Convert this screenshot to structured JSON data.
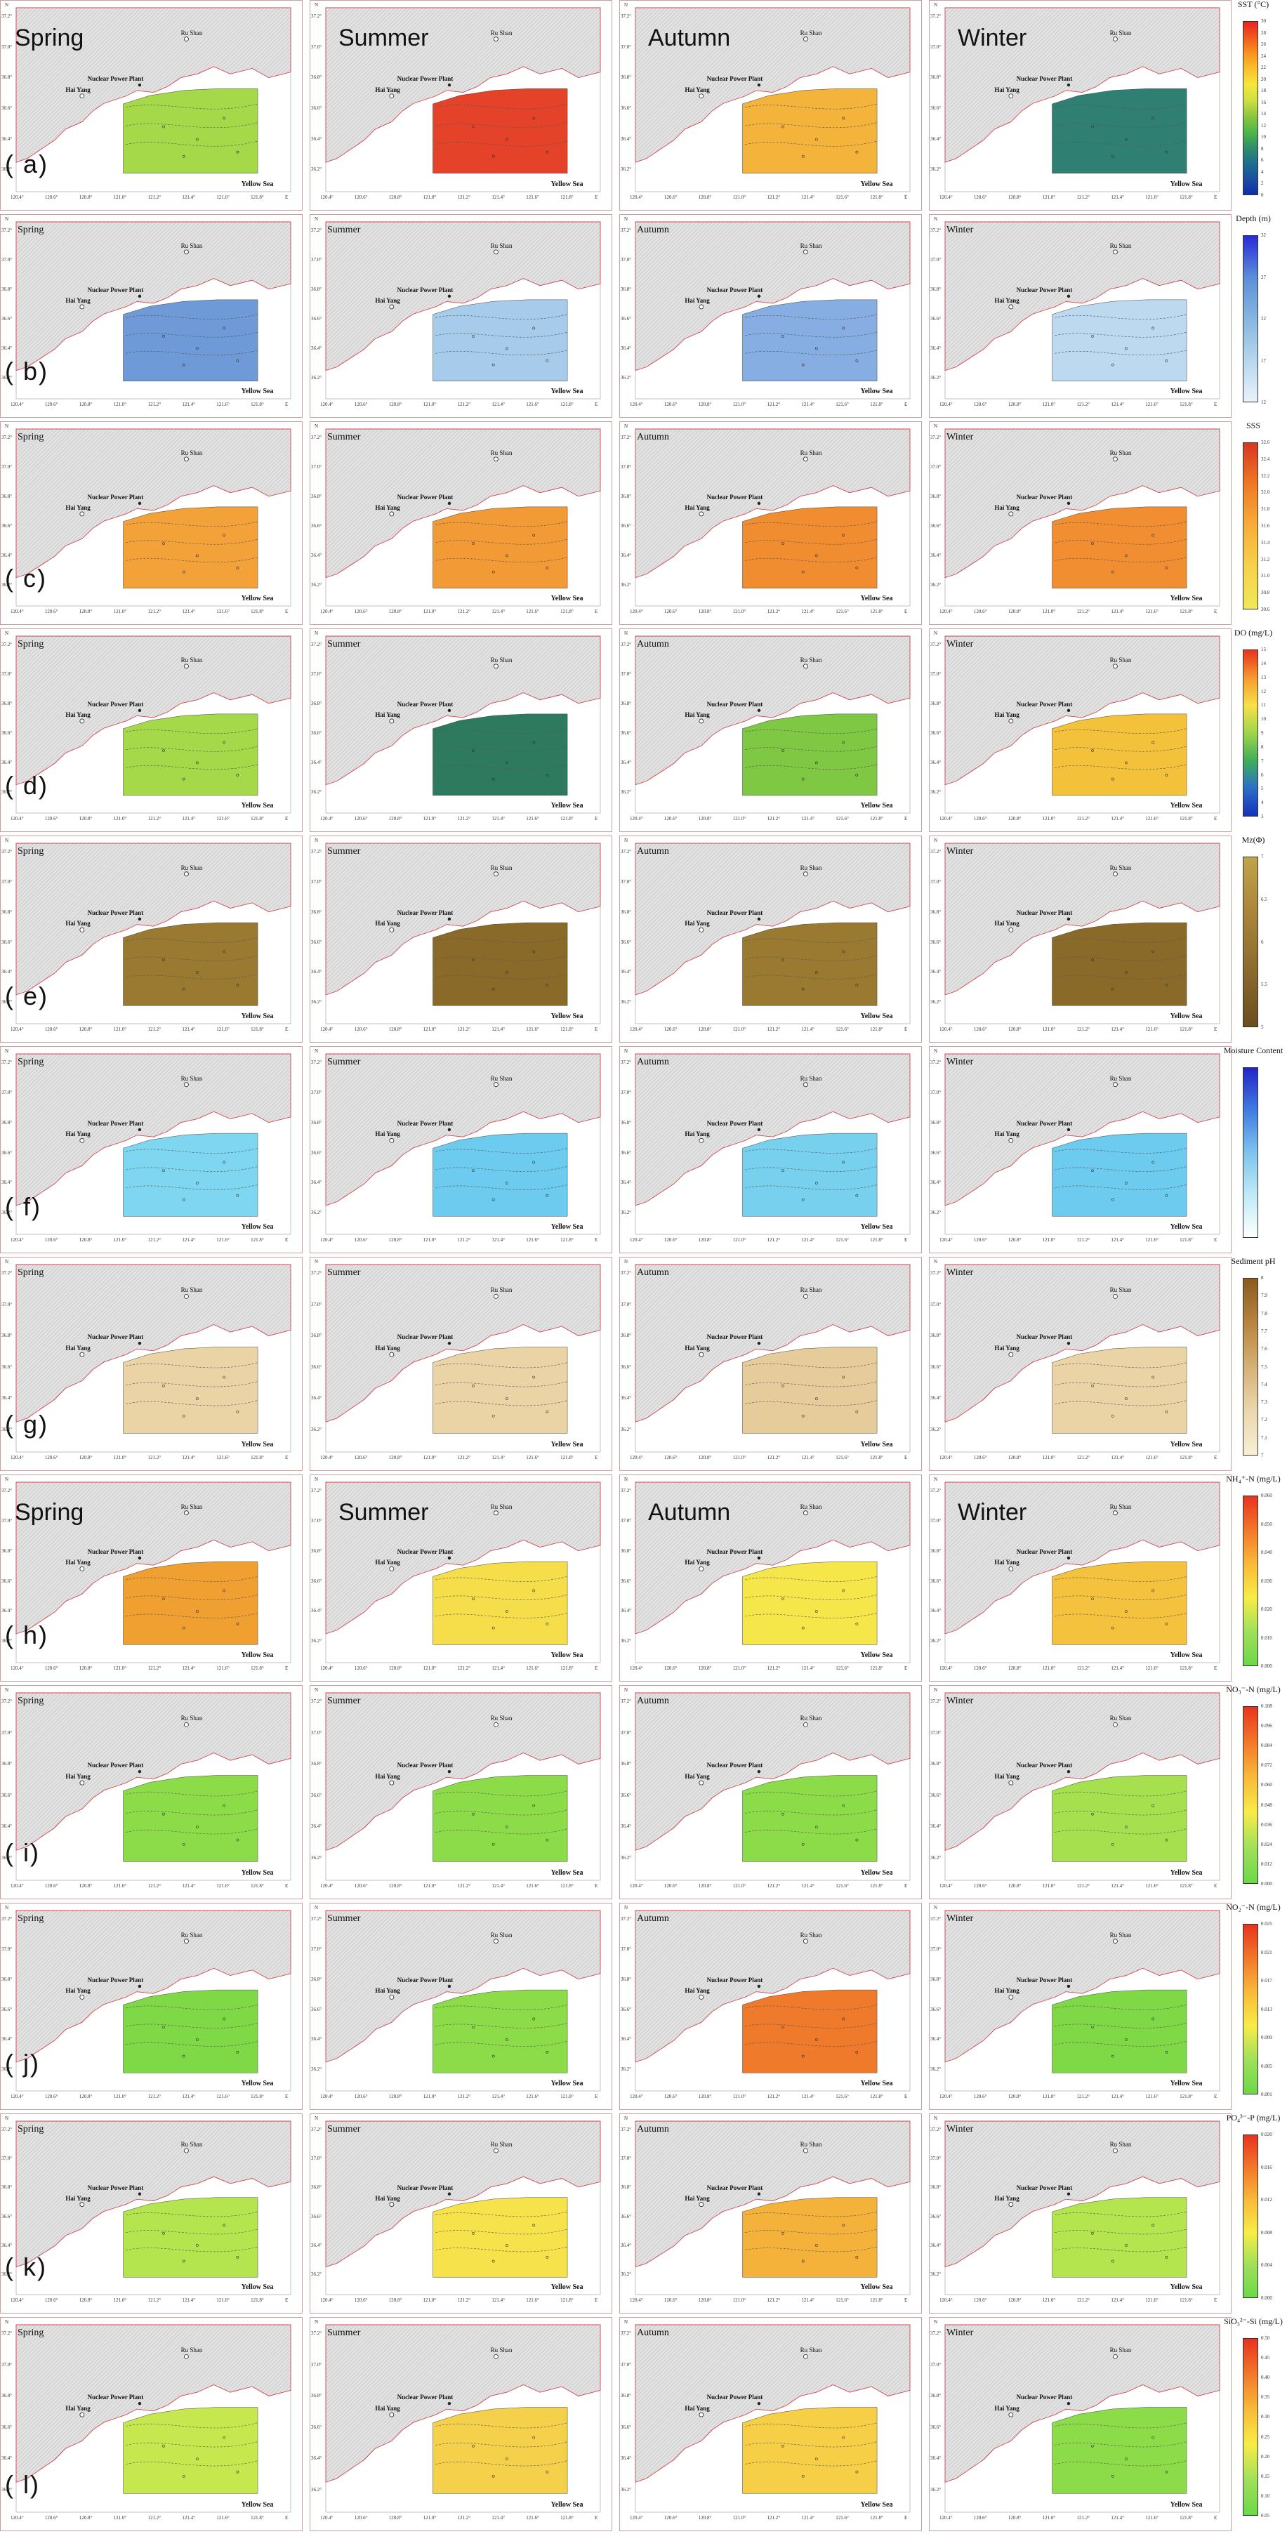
{
  "rows": [
    {
      "label": "( a)",
      "bigSeasons": true,
      "legend": {
        "title": "SST (°C)",
        "ticks": [
          "30",
          "28",
          "26",
          "24",
          "22",
          "20",
          "18",
          "16",
          "14",
          "12",
          "10",
          "8",
          "6",
          "4",
          "2",
          "0"
        ],
        "colors": [
          "#e8231f",
          "#f05a1e",
          "#f7941d",
          "#fbc02d",
          "#f5e63c",
          "#cfe045",
          "#8dc63f",
          "#4fb848",
          "#2f8f6a",
          "#1e6f8f",
          "#1b4fa0",
          "#0d2fa8"
        ]
      },
      "panels": [
        {
          "season": "Spring",
          "fill": "#a6d94a"
        },
        {
          "season": "Summer",
          "fill": "#e5422a"
        },
        {
          "season": "Autumn",
          "fill": "#f4b33a"
        },
        {
          "season": "Winter",
          "fill": "#2f8072"
        }
      ]
    },
    {
      "label": "( b)",
      "bigSeasons": false,
      "legend": {
        "title": "Depth (m)",
        "ticks": [
          "32",
          "",
          "27",
          "",
          "22",
          "",
          "17",
          "",
          "12"
        ],
        "colors": [
          "#2a2ad8",
          "#5b8fd8",
          "#86b6e0",
          "#b7d6ee",
          "#e8f3fa"
        ]
      },
      "panels": [
        {
          "season": "Spring",
          "fill": "#6f9ad8"
        },
        {
          "season": "Summer",
          "fill": "#a7cbea"
        },
        {
          "season": "Autumn",
          "fill": "#86aee2"
        },
        {
          "season": "Winter",
          "fill": "#bcd9f0"
        }
      ]
    },
    {
      "label": "( c)",
      "bigSeasons": false,
      "legend": {
        "title": "SSS",
        "ticks": [
          "32.6",
          "32.4",
          "32.2",
          "32.0",
          "31.8",
          "31.6",
          "31.4",
          "31.2",
          "31.0",
          "30.8",
          "30.6"
        ],
        "colors": [
          "#d8361e",
          "#ee7a25",
          "#f7ae3a",
          "#f7d24a",
          "#efe858"
        ]
      },
      "panels": [
        {
          "season": "Spring",
          "fill": "#f3a23a"
        },
        {
          "season": "Summer",
          "fill": "#f29a35"
        },
        {
          "season": "Autumn",
          "fill": "#ef8d30"
        },
        {
          "season": "Winter",
          "fill": "#f08e31"
        }
      ]
    },
    {
      "label": "( d)",
      "bigSeasons": false,
      "legend": {
        "title": "DO (mg/L)",
        "ticks": [
          "15",
          "14",
          "13",
          "12",
          "11",
          "10",
          "9",
          "8",
          "7",
          "6",
          "5",
          "4",
          "3"
        ],
        "colors": [
          "#e8331e",
          "#f59b30",
          "#f8e04a",
          "#9ed64a",
          "#3fae5a",
          "#2a6fc8",
          "#1433b8"
        ]
      },
      "panels": [
        {
          "season": "Spring",
          "fill": "#a6d94a"
        },
        {
          "season": "Summer",
          "fill": "#2d7a5e"
        },
        {
          "season": "Autumn",
          "fill": "#7ec843"
        },
        {
          "season": "Winter",
          "fill": "#f4c13a"
        }
      ]
    },
    {
      "label": "( e)",
      "bigSeasons": false,
      "legend": {
        "title": "Mz(Φ)",
        "ticks": [
          "7",
          "6.5",
          "6",
          "5.5",
          "5"
        ],
        "colors": [
          "#c2a24b",
          "#a9853a",
          "#8b6a2c",
          "#6b4e1f"
        ]
      },
      "panels": [
        {
          "season": "Spring",
          "fill": "#9a7a30"
        },
        {
          "season": "Summer",
          "fill": "#8a6a28"
        },
        {
          "season": "Autumn",
          "fill": "#9a7a30"
        },
        {
          "season": "Winter",
          "fill": "#8a6a28"
        }
      ]
    },
    {
      "label": "( f)",
      "bigSeasons": false,
      "legend": {
        "title": "Moisture Content",
        "ticks": [
          "",
          "",
          "",
          "",
          "",
          ""
        ],
        "colors": [
          "#2424c8",
          "#3f7de0",
          "#7fc3ee",
          "#bfeaf6",
          "#ffffff"
        ]
      },
      "panels": [
        {
          "season": "Spring",
          "fill": "#7fd6f0"
        },
        {
          "season": "Summer",
          "fill": "#6ccbee"
        },
        {
          "season": "Autumn",
          "fill": "#78d0ef"
        },
        {
          "season": "Winter",
          "fill": "#6ccbee"
        }
      ]
    },
    {
      "label": "( g)",
      "bigSeasons": false,
      "legend": {
        "title": "Sediment pH",
        "ticks": [
          "8",
          "7.9",
          "7.8",
          "7.7",
          "7.6",
          "7.5",
          "7.4",
          "7.3",
          "7.2",
          "7.1",
          "7"
        ],
        "colors": [
          "#8a5a1f",
          "#b8843e",
          "#d6b176",
          "#ead7ad",
          "#f7efd6"
        ]
      },
      "panels": [
        {
          "season": "Spring",
          "fill": "#ead4a6"
        },
        {
          "season": "Summer",
          "fill": "#ead4a6"
        },
        {
          "season": "Autumn",
          "fill": "#e6cc9a"
        },
        {
          "season": "Winter",
          "fill": "#ead4a6"
        }
      ]
    },
    {
      "label": "( h)",
      "bigSeasons": true,
      "legend": {
        "title": "NH₄⁺-N (mg/L)",
        "ticks": [
          "0.060",
          "0.050",
          "0.040",
          "0.030",
          "0.020",
          "0.010",
          "0.000"
        ],
        "colors": [
          "#e8331e",
          "#f2782a",
          "#f8ba3a",
          "#f8ec48",
          "#9fe05a",
          "#6cd84a"
        ]
      },
      "panels": [
        {
          "season": "Spring",
          "fill": "#f0a030"
        },
        {
          "season": "Summer",
          "fill": "#f5de4a"
        },
        {
          "season": "Autumn",
          "fill": "#f5e64a"
        },
        {
          "season": "Winter",
          "fill": "#f4c23c"
        }
      ]
    },
    {
      "label": "( i)",
      "bigSeasons": false,
      "legend": {
        "title": "NO₃⁻-N (mg/L)",
        "ticks": [
          "0.108",
          "0.096",
          "0.084",
          "0.072",
          "0.060",
          "0.048",
          "0.036",
          "0.024",
          "0.012",
          "0.000"
        ],
        "colors": [
          "#e8331e",
          "#f2782a",
          "#f8ba3a",
          "#f8ec48",
          "#9fe05a",
          "#6cd84a"
        ]
      },
      "panels": [
        {
          "season": "Spring",
          "fill": "#8cdc4a"
        },
        {
          "season": "Summer",
          "fill": "#8cdc4a"
        },
        {
          "season": "Autumn",
          "fill": "#8cdc4a"
        },
        {
          "season": "Winter",
          "fill": "#a6e04e"
        }
      ]
    },
    {
      "label": "( j)",
      "bigSeasons": false,
      "legend": {
        "title": "NO₂⁻-N (mg/L)",
        "ticks": [
          "0.025",
          "0.021",
          "0.017",
          "0.013",
          "0.009",
          "0.005",
          "0.001"
        ],
        "colors": [
          "#e8331e",
          "#f2782a",
          "#f8ba3a",
          "#f8ec48",
          "#9fe05a",
          "#6cd84a"
        ]
      },
      "panels": [
        {
          "season": "Spring",
          "fill": "#7fd846"
        },
        {
          "season": "Summer",
          "fill": "#8cdc4a"
        },
        {
          "season": "Autumn",
          "fill": "#ef7a2c"
        },
        {
          "season": "Winter",
          "fill": "#7fd846"
        }
      ]
    },
    {
      "label": "( k)",
      "bigSeasons": false,
      "legend": {
        "title": "PO₄³⁻-P (mg/L)",
        "ticks": [
          "0.020",
          "0.016",
          "0.012",
          "0.008",
          "0.004",
          "0.000"
        ],
        "colors": [
          "#e8331e",
          "#f2782a",
          "#f8ba3a",
          "#f8ec48",
          "#9fe05a",
          "#6cd84a"
        ]
      },
      "panels": [
        {
          "season": "Spring",
          "fill": "#b4e44e"
        },
        {
          "season": "Summer",
          "fill": "#f6e24a"
        },
        {
          "season": "Autumn",
          "fill": "#f5b23a"
        },
        {
          "season": "Winter",
          "fill": "#b4e44e"
        }
      ]
    },
    {
      "label": "( l)",
      "bigSeasons": false,
      "legend": {
        "title": "SiO₃²⁻-Si (mg/L)",
        "ticks": [
          "0.50",
          "0.45",
          "0.40",
          "0.35",
          "0.30",
          "0.25",
          "0.20",
          "0.15",
          "0.10",
          "0.05"
        ],
        "colors": [
          "#e8331e",
          "#f2782a",
          "#f8ba3a",
          "#f8ec48",
          "#9fe05a",
          "#6cd84a"
        ]
      },
      "panels": [
        {
          "season": "Spring",
          "fill": "#c6e84e"
        },
        {
          "season": "Summer",
          "fill": "#f5d04a"
        },
        {
          "season": "Autumn",
          "fill": "#f6cf46"
        },
        {
          "season": "Winter",
          "fill": "#8cdc4a"
        }
      ]
    }
  ],
  "map": {
    "place_rushan": "Ru Shan",
    "place_npp": "Nuclear Power Plant",
    "place_haiyang": "Hai Yang",
    "sea": "Yellow Sea",
    "lon_ticks": [
      "120.4°",
      "120.6°",
      "120.8°",
      "121.0°",
      "121.2°",
      "121.4°",
      "121.6°",
      "121.8°",
      "E"
    ],
    "lat_ticks": [
      "37.2°",
      "37.0°",
      "36.8°",
      "36.6°",
      "36.4°",
      "36.2°"
    ],
    "lat_unit": "N"
  }
}
